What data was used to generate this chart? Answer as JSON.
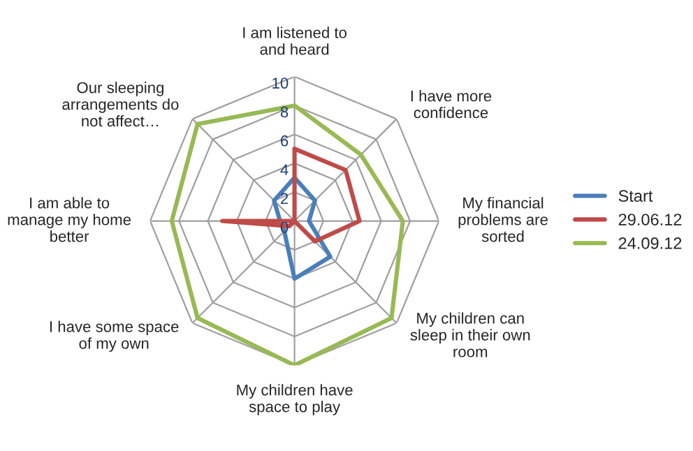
{
  "chart_data": {
    "type": "radar",
    "categories": [
      "I am listened to and heard",
      "I have more confidence",
      "My financial problems are sorted",
      "My children can sleep in their own room",
      "My children have space to play",
      "I have some space of my own",
      "I am able to manage my home better",
      "Our sleeping arrangements do not affect…"
    ],
    "series": [
      {
        "name": "Start",
        "color": "#4a7ebb",
        "values": [
          3,
          2,
          1,
          3.5,
          4,
          1,
          1,
          2
        ]
      },
      {
        "name": "29.06.12",
        "color": "#be4b48",
        "values": [
          5,
          5,
          4.5,
          2,
          0,
          0.5,
          5,
          0
        ]
      },
      {
        "name": "24.09.12",
        "color": "#98b954",
        "values": [
          8,
          6.5,
          7.5,
          9.5,
          10,
          9.5,
          8.5,
          9.5
        ]
      }
    ],
    "ylim": [
      0,
      10
    ],
    "yticks": [
      0,
      2,
      4,
      6,
      8,
      10
    ],
    "legend": "right",
    "grid": true
  }
}
